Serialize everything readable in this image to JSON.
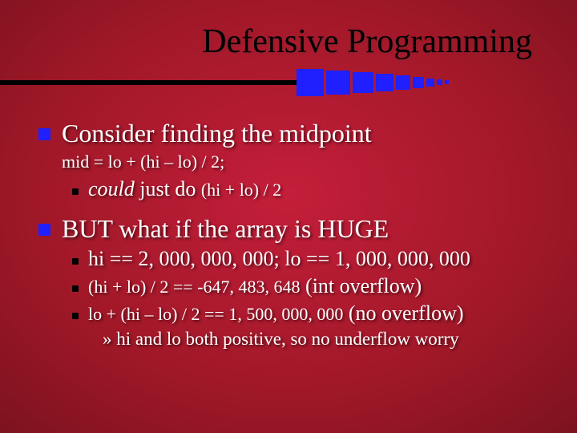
{
  "title": "Defensive Programming",
  "p1": {
    "heading": "Consider finding the midpoint",
    "code": "mid = lo + (hi – lo) / 2;",
    "sub_ital": "could",
    "sub_rest": " just do ",
    "sub_sm": "(hi + lo) / 2"
  },
  "p2": {
    "heading": "BUT what if the array is HUGE",
    "b1": "hi == 2, 000, 000, 000; lo == 1, 000, 000, 000",
    "b2_sm": "(hi + lo) / 2 == -647, 483, 648",
    "b2_rest": " (int overflow)",
    "b3_sm": "lo + (hi – lo) / 2 == 1, 500, 000, 000",
    "b3_rest": " (no overflow)",
    "sub": "» hi and lo both positive, so no underflow worry"
  },
  "colors": {
    "accent": "#2020ff",
    "title": "#000000",
    "text": "#ffffff"
  }
}
